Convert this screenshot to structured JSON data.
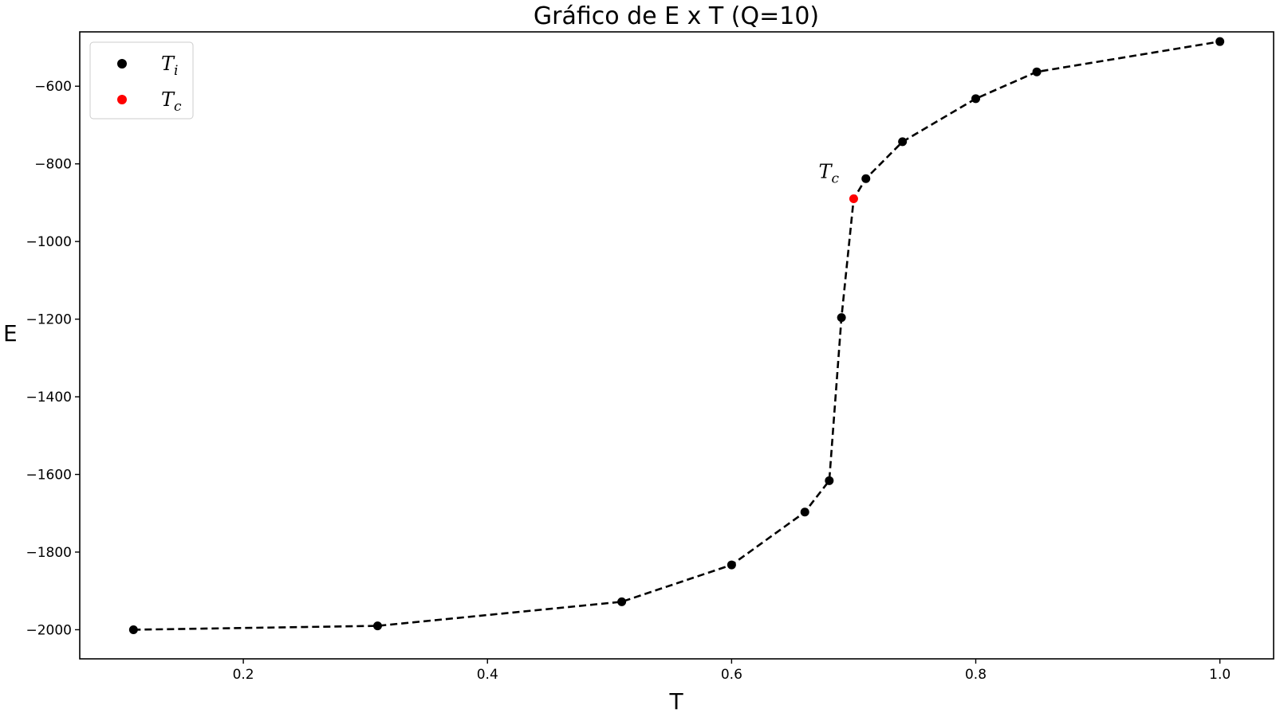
{
  "chart_data": {
    "type": "line",
    "title": "Gráfico de E x T (Q=10)",
    "xlabel": "T",
    "ylabel": "E",
    "xlim": [
      0.066,
      1.044
    ],
    "ylim": [
      -2075,
      -460
    ],
    "xticks": [
      0.2,
      0.4,
      0.6,
      0.8,
      1.0
    ],
    "xtick_labels": [
      "0.2",
      "0.4",
      "0.6",
      "0.8",
      "1.0"
    ],
    "yticks": [
      -2000,
      -1800,
      -1600,
      -1400,
      -1200,
      -1000,
      -800,
      -600
    ],
    "ytick_labels": [
      "−2000",
      "−1800",
      "−1600",
      "−1400",
      "−1200",
      "−1000",
      "−800",
      "−600"
    ],
    "grid": false,
    "legend_position": "top-left",
    "line": {
      "style": "dashed",
      "color": "#000000"
    },
    "series": [
      {
        "name_base": "T",
        "name_sub": "i",
        "color": "#000000",
        "x": [
          0.11,
          0.31,
          0.51,
          0.6,
          0.66,
          0.68,
          0.69,
          0.71,
          0.74,
          0.8,
          0.85,
          1.0
        ],
        "y": [
          -2000,
          -1990,
          -1928,
          -1833,
          -1697,
          -1616,
          -1196,
          -838,
          -743,
          -632,
          -563,
          -485
        ]
      },
      {
        "name_base": "T",
        "name_sub": "c",
        "color": "#ff0000",
        "x": [
          0.7
        ],
        "y": [
          -890
        ]
      }
    ],
    "annotations": [
      {
        "text_base": "T",
        "text_sub": "c",
        "x": 0.7,
        "y": -890
      }
    ]
  }
}
